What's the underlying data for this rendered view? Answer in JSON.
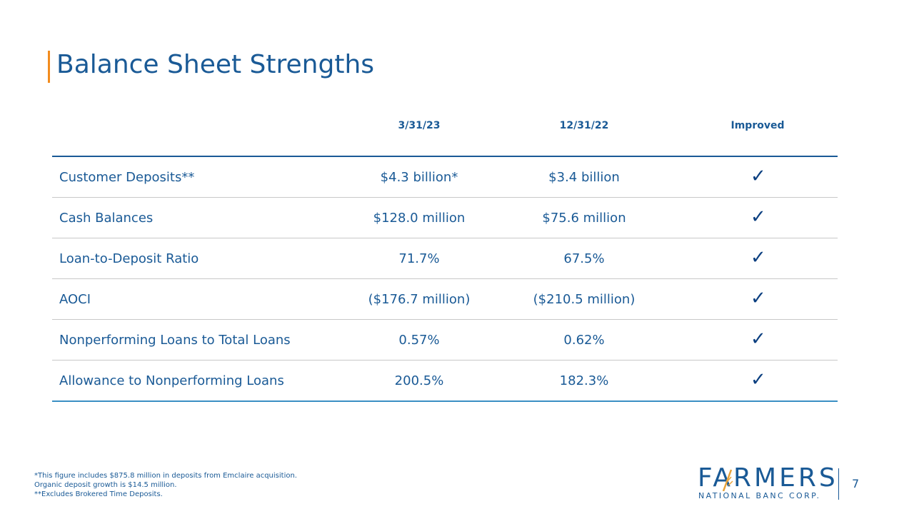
{
  "title": "Balance Sheet Strengths",
  "table": {
    "headers": [
      "3/31/23",
      "12/31/22",
      "Improved"
    ],
    "rows": [
      {
        "label": "Customer Deposits**",
        "v1": "$4.3 billion*",
        "v2": "$3.4 billion",
        "improved": "✓"
      },
      {
        "label": "Cash Balances",
        "v1": "$128.0 million",
        "v2": "$75.6 million",
        "improved": "✓"
      },
      {
        "label": "Loan-to-Deposit Ratio",
        "v1": "71.7%",
        "v2": "67.5%",
        "improved": "✓"
      },
      {
        "label": "AOCI",
        "v1": "($176.7 million)",
        "v2": "($210.5 million)",
        "improved": "✓"
      },
      {
        "label": "Nonperforming Loans to Total Loans",
        "v1": "0.57%",
        "v2": "0.62%",
        "improved": "✓"
      },
      {
        "label": "Allowance to Nonperforming Loans",
        "v1": "200.5%",
        "v2": "182.3%",
        "improved": "✓"
      }
    ]
  },
  "footnotes": [
    "*This figure includes $875.8 million in deposits from Emclaire acquisition.",
    "Organic deposit growth is $14.5 million.",
    "**Excludes Brokered Time Deposits."
  ],
  "logo": {
    "word": "FARMERS",
    "sub": "NATIONAL BANC CORP."
  },
  "page_number": "7",
  "colors": {
    "primary": "#1a5a96",
    "accent": "#f28c1e",
    "logo_accent": "#e8a33a"
  }
}
